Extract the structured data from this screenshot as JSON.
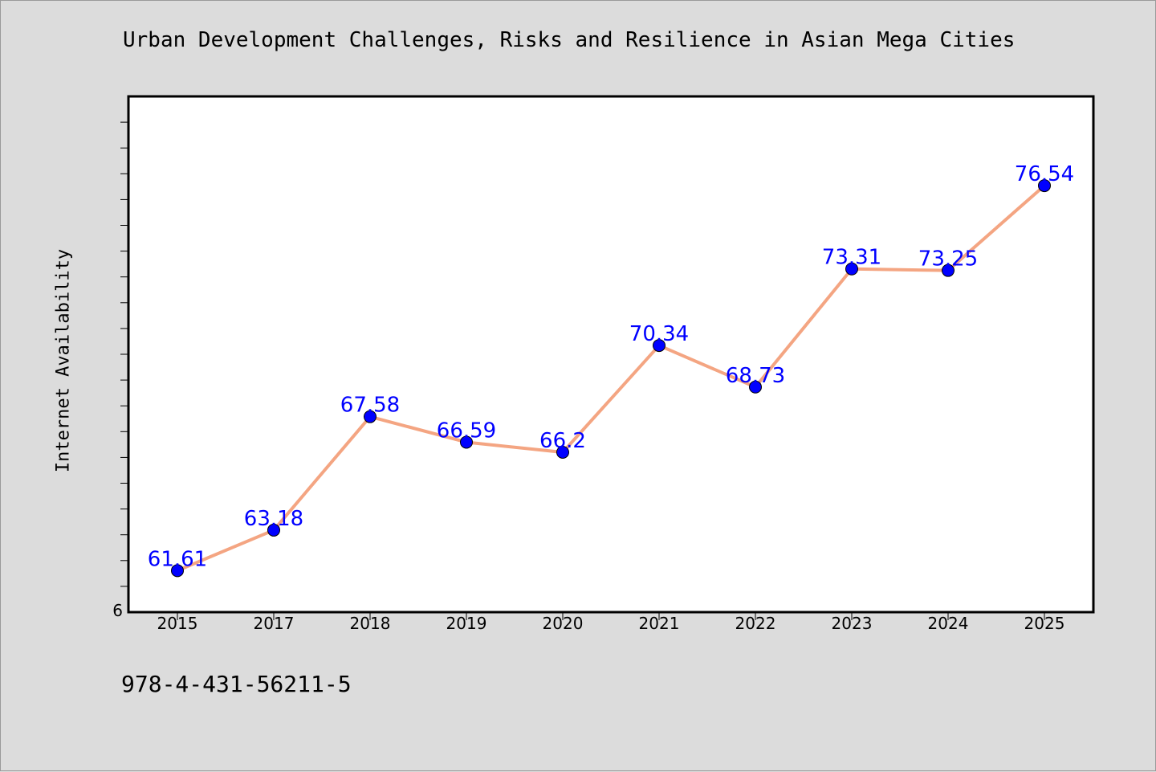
{
  "chart_data": {
    "type": "line",
    "title": "Urban Development Challenges, Risks and Resilience in Asian Mega Cities",
    "xlabel": "",
    "ylabel": "Internet Availability",
    "categories": [
      "2015",
      "2017",
      "2018",
      "2019",
      "2020",
      "2021",
      "2022",
      "2023",
      "2024",
      "2025"
    ],
    "series": [
      {
        "values": [
          61.61,
          63.18,
          67.58,
          66.59,
          66.2,
          70.34,
          68.73,
          73.31,
          73.25,
          76.54
        ]
      }
    ],
    "data_labels": [
      "61.61",
      "63.18",
      "67.58",
      "66.59",
      "66.2",
      "70.34",
      "68.73",
      "73.31",
      "73.25",
      "76.54"
    ],
    "ylim": [
      60,
      80
    ],
    "y_tick_labels": [
      "6"
    ],
    "grid": false,
    "line_color": "#f4a582",
    "marker_color": "#0000ff",
    "label_color": "#0000ff"
  },
  "footer_text": "978-4-431-56211-5"
}
